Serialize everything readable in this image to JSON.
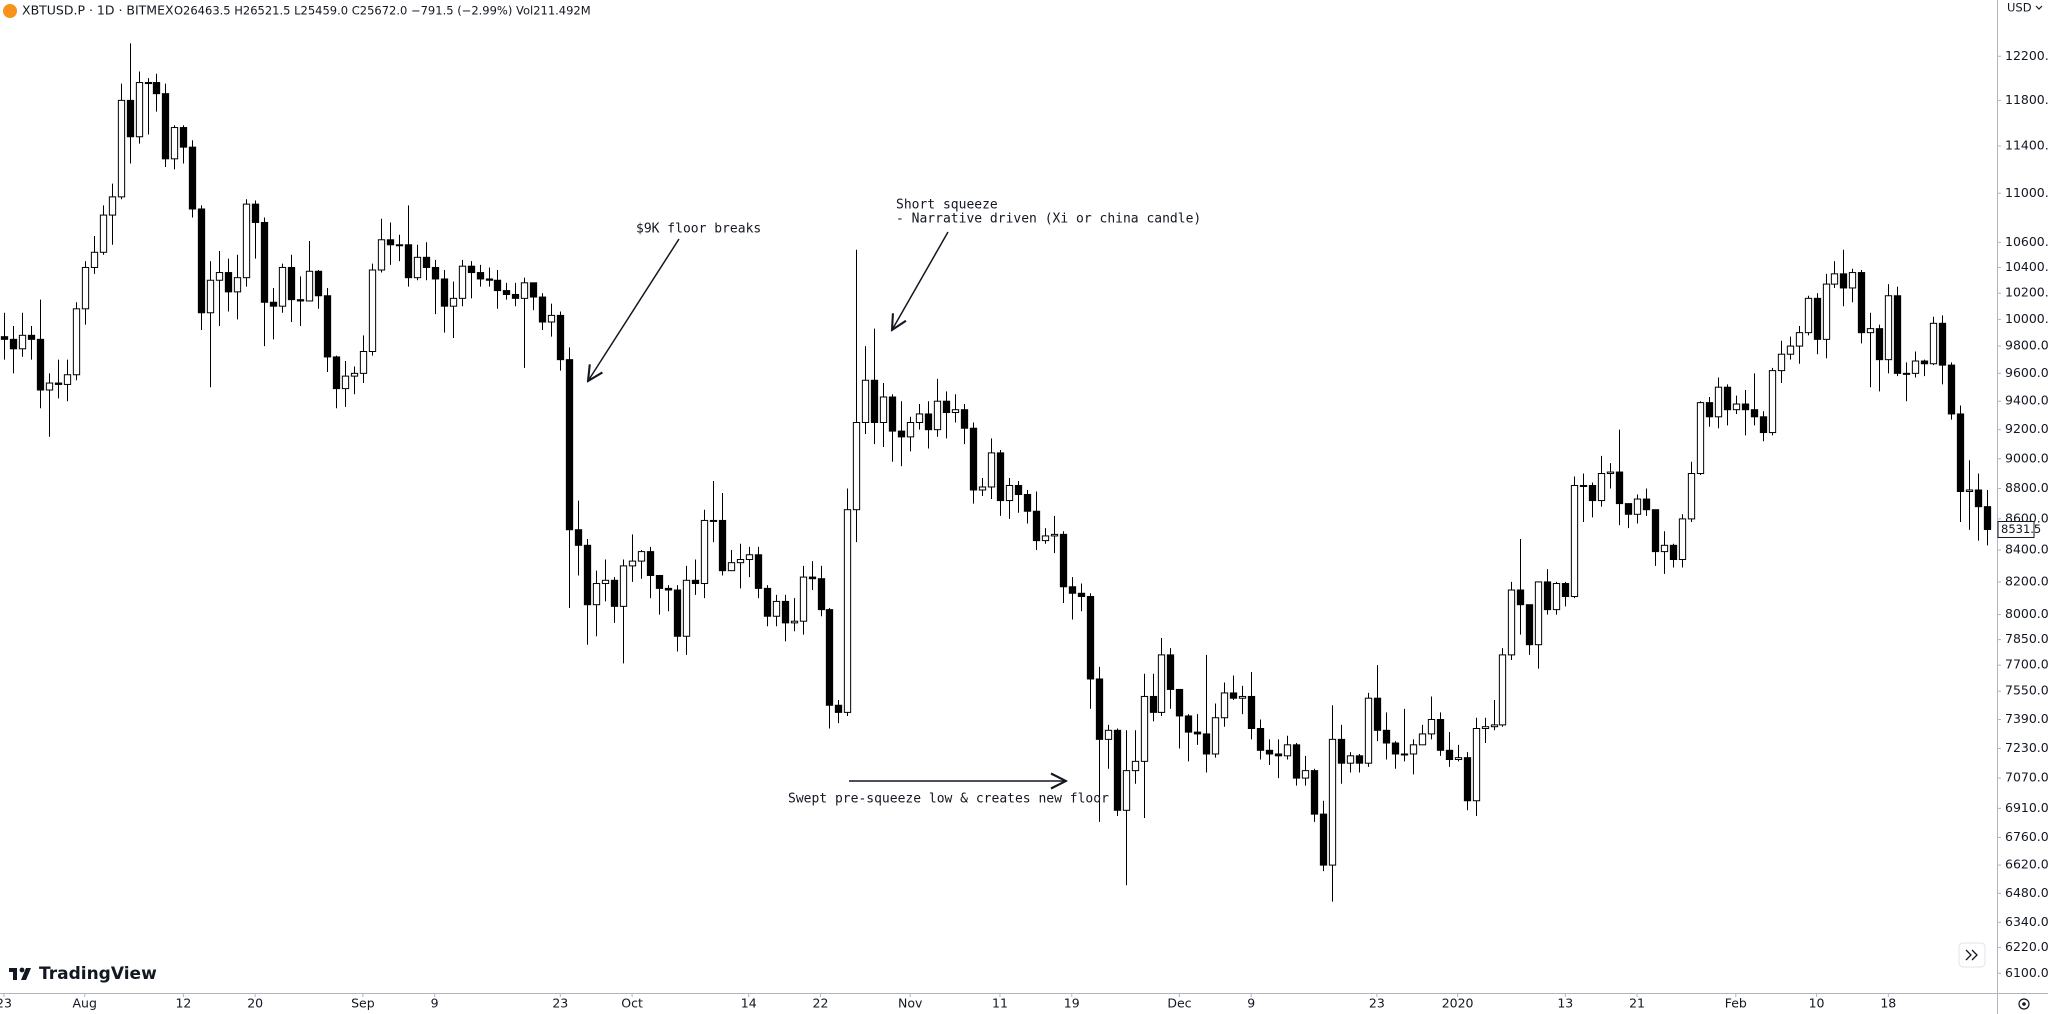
{
  "chart_data": {
    "type": "candlestick",
    "symbol": "XBTUSD.P · 1D · BITMEX",
    "legend_values": "O26463.5 H26521.5 L25459.0 C25672.0 −791.5 (−2.99%) Vol211.492M",
    "currency": "USD",
    "brand": "TradingView",
    "log_scale": true,
    "grid": false,
    "up_color": "#ffffff",
    "down_color": "#000000",
    "border_color": "#000000",
    "xlim": [
      -0.44,
      222.0
    ],
    "ylim": [
      6010,
      12730
    ],
    "xticks": [
      {
        "value": 0,
        "label": "23"
      },
      {
        "value": 9,
        "label": "Aug"
      },
      {
        "value": 20,
        "label": "12"
      },
      {
        "value": 28,
        "label": "20"
      },
      {
        "value": 40,
        "label": "Sep"
      },
      {
        "value": 48,
        "label": "9"
      },
      {
        "value": 62,
        "label": "23"
      },
      {
        "value": 70,
        "label": "Oct"
      },
      {
        "value": 83,
        "label": "14"
      },
      {
        "value": 91,
        "label": "22"
      },
      {
        "value": 101,
        "label": "Nov"
      },
      {
        "value": 111,
        "label": "11"
      },
      {
        "value": 119,
        "label": "19"
      },
      {
        "value": 131,
        "label": "Dec"
      },
      {
        "value": 139,
        "label": "9"
      },
      {
        "value": 153,
        "label": "23"
      },
      {
        "value": 162,
        "label": "2020"
      },
      {
        "value": 174,
        "label": "13"
      },
      {
        "value": 182,
        "label": "21"
      },
      {
        "value": 193,
        "label": "Feb"
      },
      {
        "value": 202,
        "label": "10"
      },
      {
        "value": 210,
        "label": "18"
      }
    ],
    "yticks": [
      {
        "value": 6100,
        "label": "6100.0"
      },
      {
        "value": 6220,
        "label": "6220.0"
      },
      {
        "value": 6340,
        "label": "6340.0"
      },
      {
        "value": 6480,
        "label": "6480.0"
      },
      {
        "value": 6620,
        "label": "6620.0"
      },
      {
        "value": 6760,
        "label": "6760.0"
      },
      {
        "value": 6910,
        "label": "6910.0"
      },
      {
        "value": 7070,
        "label": "7070.0"
      },
      {
        "value": 7230,
        "label": "7230.0"
      },
      {
        "value": 7390,
        "label": "7390.0"
      },
      {
        "value": 7550,
        "label": "7550.0"
      },
      {
        "value": 7700,
        "label": "7700.0"
      },
      {
        "value": 7850,
        "label": "7850.0"
      },
      {
        "value": 8000,
        "label": "8000.0"
      },
      {
        "value": 8200,
        "label": "8200.0"
      },
      {
        "value": 8400,
        "label": "8400.0"
      },
      {
        "value": 8600,
        "label": "8600.0"
      },
      {
        "value": 8800,
        "label": "8800.0"
      },
      {
        "value": 9000,
        "label": "9000.0"
      },
      {
        "value": 9200,
        "label": "9200.0"
      },
      {
        "value": 9400,
        "label": "9400.0"
      },
      {
        "value": 9600,
        "label": "9600.0"
      },
      {
        "value": 9800,
        "label": "9800.0"
      },
      {
        "value": 10000,
        "label": "10000.0"
      },
      {
        "value": 10200,
        "label": "10200.0"
      },
      {
        "value": 10400,
        "label": "10400.0"
      },
      {
        "value": 10600,
        "label": "10600.0"
      },
      {
        "value": 11000,
        "label": "11000.0"
      },
      {
        "value": 11400,
        "label": "11400.0"
      },
      {
        "value": 11800,
        "label": "11800.0"
      },
      {
        "value": 12200,
        "label": "12200.0"
      }
    ],
    "open": [
      9870,
      9850,
      9780,
      9880,
      9850,
      9480,
      9530,
      9520,
      9590,
      10080,
      10400,
      10520,
      10820,
      10970,
      11800,
      11480,
      11960,
      11960,
      11860,
      11290,
      11560,
      11390,
      10870,
      10050,
      10300,
      10360,
      10210,
      10320,
      10910,
      10760,
      10130,
      10100,
      10400,
      10150,
      10140,
      10370,
      10180,
      9720,
      9490,
      9580,
      9600,
      9760,
      10380,
      10620,
      10580,
      10580,
      10320,
      10480,
      10400,
      10310,
      10100,
      10160,
      10410,
      10360,
      10310,
      10300,
      10220,
      10190,
      10160,
      10280,
      10170,
      9980,
      10030,
      9700,
      8530,
      8430,
      8060,
      8190,
      8210,
      8050,
      8300,
      8330,
      8390,
      8240,
      8160,
      8150,
      7870,
      8210,
      8190,
      8590,
      8590,
      8270,
      8320,
      8340,
      8370,
      8160,
      7990,
      8080,
      7950,
      7960,
      8230,
      8220,
      8030,
      7470,
      7430,
      8660,
      9250,
      9550,
      9250,
      9430,
      9190,
      9150,
      9250,
      9310,
      9200,
      9400,
      9320,
      9340,
      9210,
      8790,
      8810,
      9040,
      8720,
      8820,
      8760,
      8650,
      8460,
      8490,
      8500,
      8170,
      8130,
      8110,
      7620,
      7280,
      7330,
      6900,
      7110,
      7160,
      7520,
      7430,
      7760,
      7560,
      7410,
      7320,
      7310,
      7200,
      7400,
      7540,
      7510,
      7520,
      7340,
      7220,
      7200,
      7190,
      7250,
      7070,
      7110,
      6880,
      6620,
      7280,
      7150,
      7190,
      7150,
      7510,
      7330,
      7260,
      7200,
      7200,
      7250,
      7310,
      7390,
      7220,
      7170,
      7180,
      6950,
      7340,
      7350,
      7360,
      7760,
      8150,
      8060,
      7820,
      8200,
      8030,
      8190,
      8110,
      8820,
      8820,
      8720,
      8900,
      8910,
      8700,
      8630,
      8730,
      8660,
      8390,
      8430,
      8340,
      8600,
      8900,
      9390,
      9290,
      9500,
      9340,
      9380,
      9340,
      9290,
      9180,
      9620,
      9740,
      9800,
      9900,
      10160,
      9850,
      10270,
      10350,
      10240,
      10360,
      9900,
      9930,
      9700,
      10180,
      9600,
      9600,
      9690,
      9670,
      9970,
      9660,
      9310,
      8780,
      8790,
      8680
    ],
    "high": [
      10050,
      9950,
      10050,
      9950,
      10150,
      9600,
      9700,
      9700,
      10130,
      10450,
      10650,
      10900,
      11080,
      11950,
      12320,
      12060,
      12000,
      12040,
      11950,
      11580,
      11580,
      11450,
      10900,
      10450,
      10530,
      10470,
      10500,
      10950,
      10940,
      10800,
      10240,
      10430,
      10500,
      10330,
      10610,
      10380,
      10240,
      9730,
      9690,
      9650,
      9880,
      10430,
      10790,
      10760,
      10660,
      10900,
      10580,
      10600,
      10460,
      10380,
      10290,
      10460,
      10450,
      10420,
      10400,
      10380,
      10280,
      10280,
      10320,
      10280,
      10200,
      10120,
      10060,
      9790,
      8720,
      8470,
      8270,
      8340,
      8230,
      8340,
      8500,
      8400,
      8420,
      8240,
      8180,
      8180,
      8300,
      8340,
      8660,
      8850,
      8770,
      8400,
      8440,
      8420,
      8420,
      8180,
      8120,
      8120,
      8100,
      8300,
      8330,
      8300,
      8040,
      7500,
      8800,
      10540,
      9800,
      9930,
      9530,
      9450,
      9400,
      9290,
      9380,
      9400,
      9560,
      9470,
      9450,
      9380,
      9250,
      8870,
      9140,
      9060,
      8870,
      8850,
      8790,
      8780,
      8540,
      8620,
      8520,
      8230,
      8190,
      8130,
      7690,
      7360,
      7340,
      7330,
      7330,
      7650,
      7650,
      7860,
      7800,
      7560,
      7420,
      7420,
      7760,
      7480,
      7600,
      7640,
      7580,
      7660,
      7390,
      7280,
      7280,
      7300,
      7260,
      7190,
      7120,
      6950,
      7470,
      7360,
      7210,
      7200,
      7540,
      7700,
      7430,
      7270,
      7450,
      7280,
      7360,
      7520,
      7430,
      7320,
      7250,
      7210,
      7400,
      7400,
      7500,
      7800,
      8200,
      8470,
      8060,
      8200,
      8280,
      8200,
      8200,
      8880,
      8900,
      8840,
      9020,
      8970,
      9200,
      8700,
      8760,
      8800,
      8660,
      8520,
      8440,
      8630,
      8980,
      9400,
      9430,
      9570,
      9520,
      9440,
      9480,
      9600,
      9330,
      9640,
      9840,
      9870,
      9950,
      10180,
      10200,
      10350,
      10450,
      10540,
      10390,
      10380,
      10050,
      9960,
      10270,
      10250,
      9680,
      9760,
      9700,
      10020,
      10030,
      9680,
      9370,
      8990,
      8900,
      8790
    ],
    "low": [
      9700,
      9600,
      9720,
      9700,
      9350,
      9150,
      9420,
      9400,
      9550,
      9960,
      10350,
      10500,
      10580,
      10950,
      11250,
      11420,
      11500,
      11700,
      11220,
      11200,
      11250,
      10800,
      9920,
      9500,
      9950,
      10060,
      10000,
      10250,
      10470,
      9800,
      9850,
      10050,
      9980,
      9950,
      10140,
      10080,
      9610,
      9350,
      9360,
      9450,
      9530,
      9730,
      10360,
      10420,
      10450,
      10250,
      10300,
      10300,
      10040,
      9900,
      9860,
      10100,
      10160,
      10250,
      10250,
      10080,
      10150,
      10100,
      9640,
      10070,
      9920,
      9870,
      9620,
      8040,
      8240,
      7820,
      7870,
      8080,
      7950,
      7710,
      8200,
      8220,
      8100,
      8000,
      8020,
      7780,
      7760,
      8120,
      8100,
      8450,
      8240,
      8270,
      8160,
      8230,
      8100,
      7930,
      7930,
      7840,
      7900,
      7880,
      8150,
      7990,
      7340,
      7370,
      7410,
      8450,
      9170,
      9100,
      9080,
      8980,
      8950,
      9050,
      9200,
      9070,
      9150,
      9140,
      9250,
      9100,
      8700,
      8750,
      8730,
      8620,
      8600,
      8640,
      8570,
      8400,
      8440,
      8380,
      8070,
      7970,
      8020,
      7450,
      6840,
      7120,
      6870,
      6520,
      7040,
      6860,
      7380,
      7410,
      7450,
      7230,
      7160,
      7250,
      7100,
      7180,
      7350,
      7500,
      7420,
      7280,
      7170,
      7140,
      7070,
      7170,
      7030,
      7030,
      6840,
      6590,
      6440,
      7040,
      7100,
      7100,
      7130,
      7270,
      7170,
      7120,
      7160,
      7090,
      7250,
      7280,
      7190,
      7130,
      7160,
      6900,
      6870,
      7260,
      7330,
      7350,
      7730,
      7880,
      7760,
      7680,
      8000,
      8000,
      8050,
      8100,
      8580,
      8610,
      8680,
      8800,
      8560,
      8540,
      8570,
      8620,
      8300,
      8250,
      8290,
      8290,
      8580,
      8890,
      9220,
      9210,
      9230,
      9310,
      9160,
      9230,
      9120,
      9160,
      9530,
      9700,
      9670,
      9880,
      9740,
      9710,
      10240,
      10100,
      10130,
      9820,
      9500,
      9470,
      9600,
      9580,
      9400,
      9570,
      9580,
      9660,
      9520,
      9270,
      8580,
      8530,
      8460,
      8430
    ],
    "close": [
      9850,
      9780,
      9880,
      9850,
      9480,
      9530,
      9520,
      9590,
      10080,
      10400,
      10520,
      10820,
      10970,
      11800,
      11480,
      11960,
      11960,
      11860,
      11290,
      11560,
      11390,
      10870,
      10050,
      10300,
      10360,
      10210,
      10320,
      10910,
      10760,
      10130,
      10100,
      10400,
      10150,
      10140,
      10370,
      10180,
      9720,
      9490,
      9580,
      9600,
      9760,
      10380,
      10620,
      10580,
      10580,
      10320,
      10480,
      10400,
      10310,
      10100,
      10160,
      10410,
      10360,
      10310,
      10300,
      10220,
      10190,
      10160,
      10280,
      10170,
      9980,
      10030,
      9700,
      8530,
      8430,
      8060,
      8190,
      8210,
      8050,
      8300,
      8330,
      8390,
      8240,
      8160,
      8150,
      7870,
      8210,
      8190,
      8590,
      8590,
      8270,
      8320,
      8340,
      8370,
      8160,
      7990,
      8080,
      7950,
      7960,
      8230,
      8220,
      8030,
      7470,
      7430,
      8660,
      9250,
      9550,
      9250,
      9430,
      9190,
      9150,
      9250,
      9310,
      9200,
      9400,
      9320,
      9340,
      9210,
      8790,
      8810,
      9040,
      8720,
      8820,
      8760,
      8650,
      8460,
      8490,
      8500,
      8170,
      8130,
      8110,
      7620,
      7280,
      7330,
      6900,
      7110,
      7160,
      7520,
      7430,
      7760,
      7560,
      7410,
      7320,
      7310,
      7200,
      7400,
      7540,
      7510,
      7520,
      7340,
      7220,
      7200,
      7190,
      7250,
      7070,
      7110,
      6880,
      6620,
      7280,
      7150,
      7190,
      7150,
      7510,
      7330,
      7260,
      7200,
      7200,
      7250,
      7310,
      7390,
      7220,
      7170,
      7180,
      6950,
      7340,
      7350,
      7360,
      7760,
      8150,
      8060,
      7820,
      8200,
      8030,
      8190,
      8110,
      8820,
      8820,
      8720,
      8900,
      8910,
      8700,
      8630,
      8730,
      8660,
      8390,
      8430,
      8340,
      8600,
      8900,
      9390,
      9290,
      9500,
      9340,
      9380,
      9340,
      9290,
      9180,
      9620,
      9740,
      9800,
      9900,
      10160,
      9850,
      10270,
      10350,
      10240,
      10360,
      9900,
      9930,
      9700,
      10180,
      9600,
      9600,
      9690,
      9670,
      9970,
      9660,
      9310,
      8780,
      8790,
      8680,
      8531.5
    ],
    "annotations": [
      {
        "lines": [
          "$9K floor breaks"
        ]
      },
      {
        "lines": [
          "Short squeeze",
          "- Narrative driven (Xi or china candle)"
        ]
      },
      {
        "lines": [
          "Swept pre-squeeze low & creates new floor"
        ]
      }
    ]
  }
}
